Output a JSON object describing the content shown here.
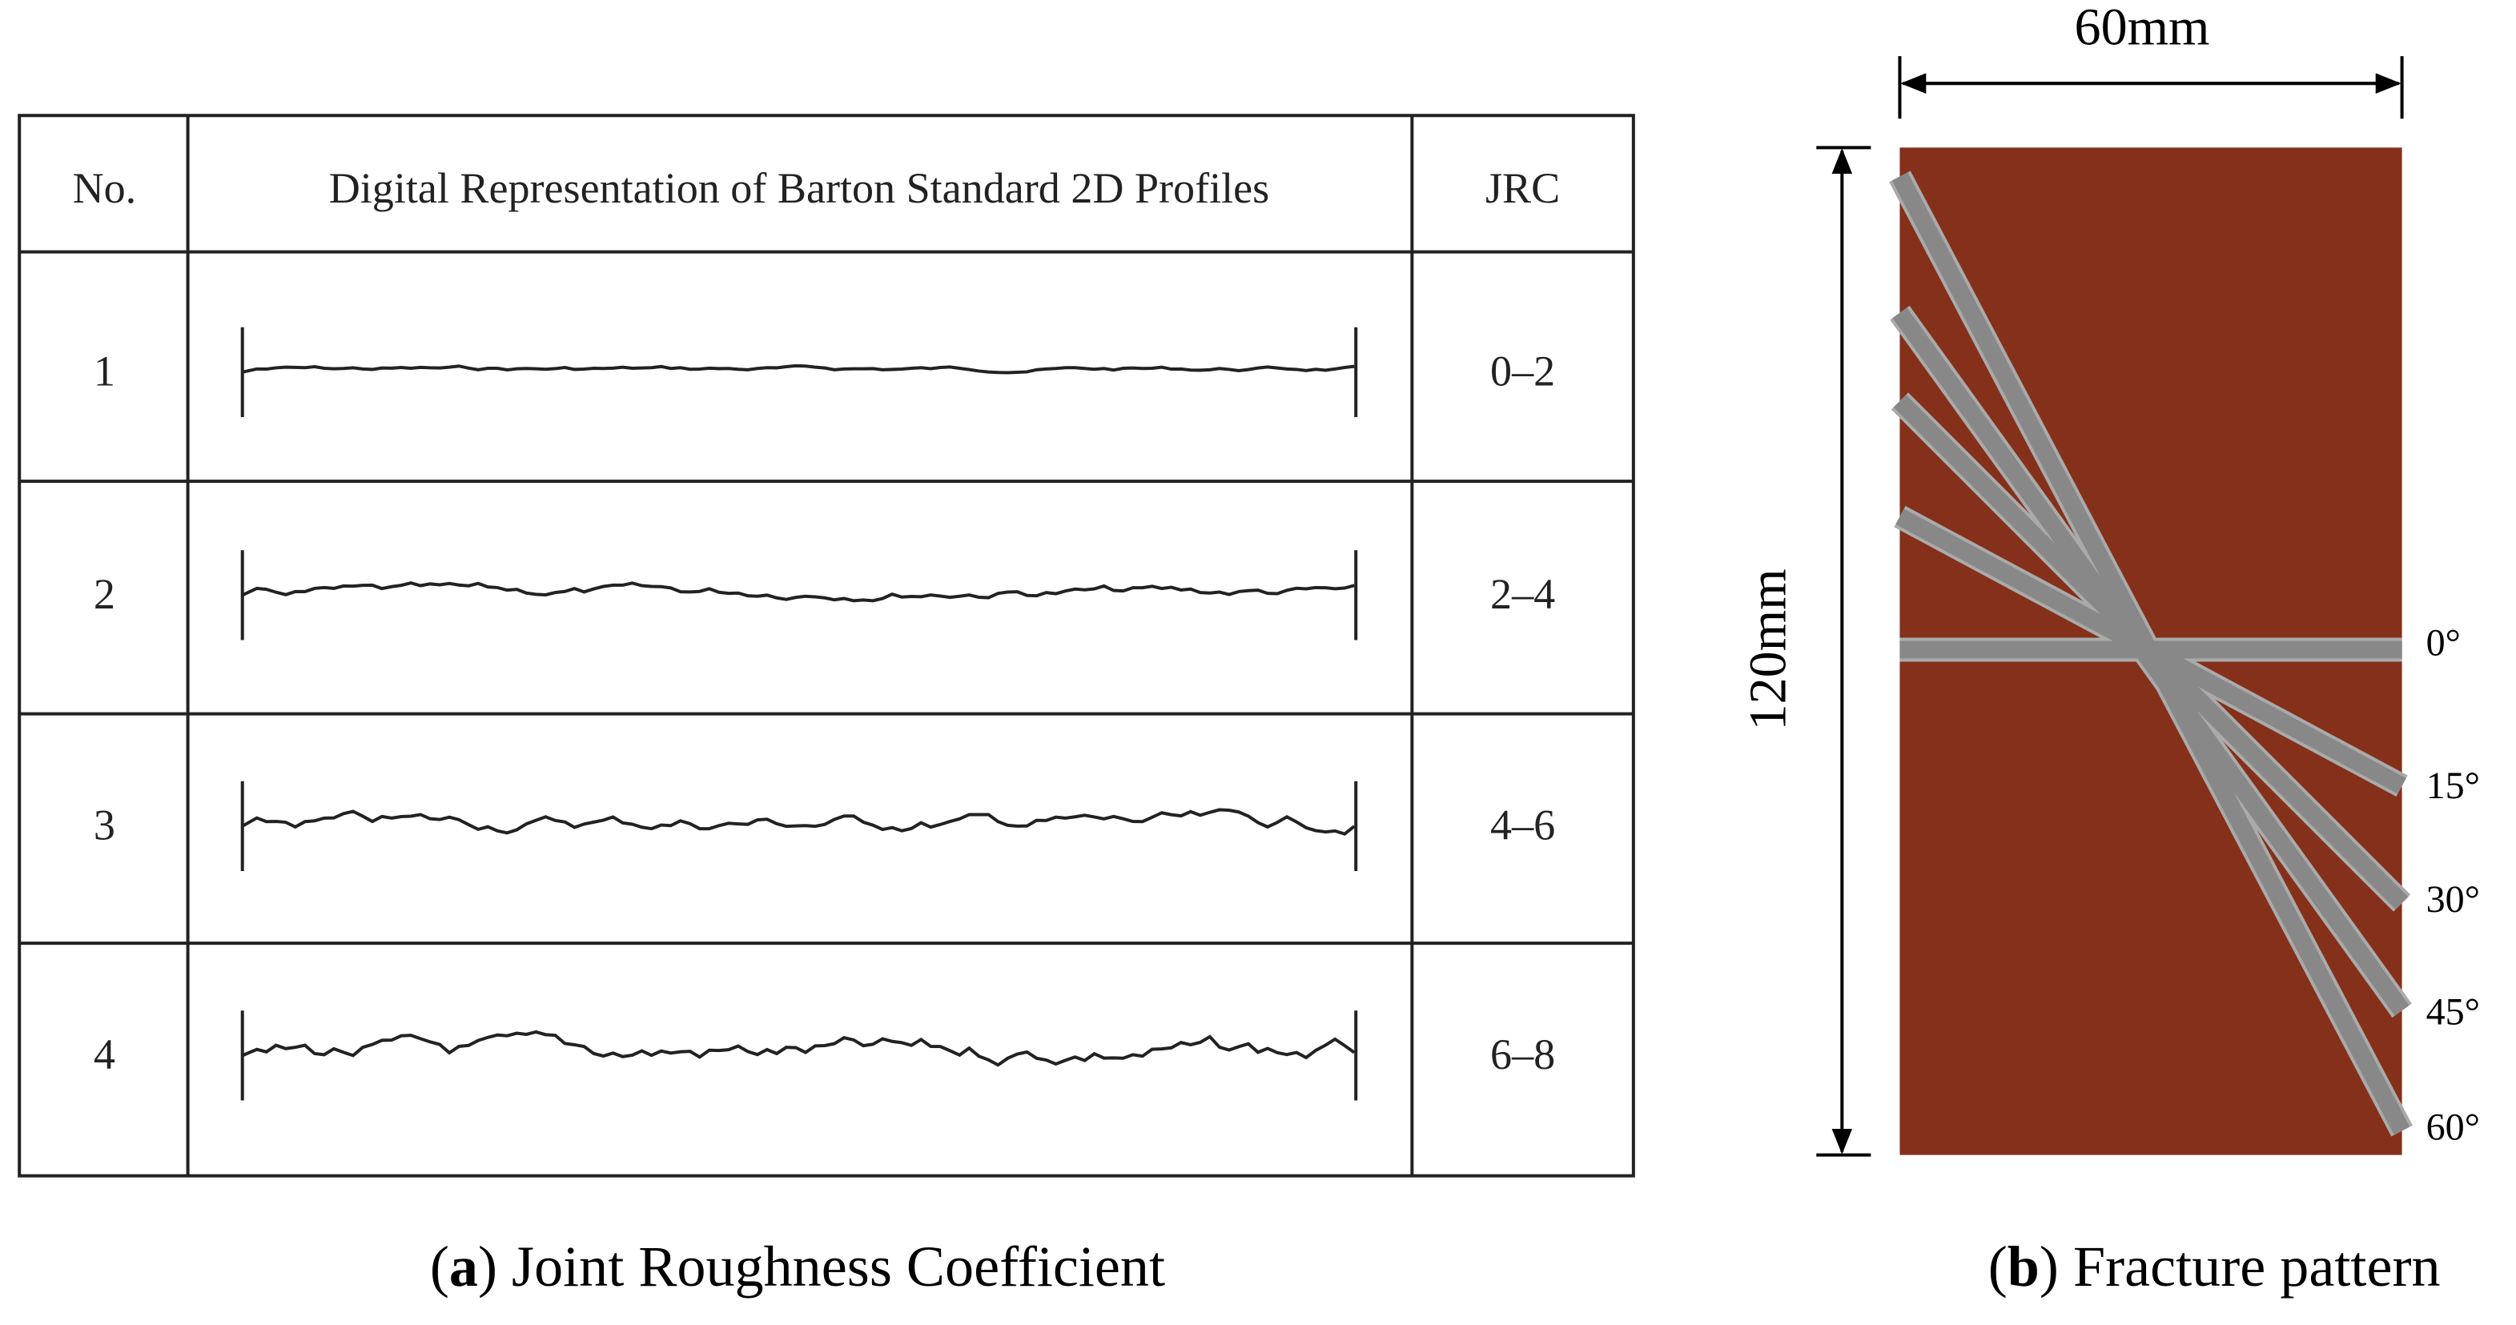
{
  "table": {
    "header": [
      "No.",
      "Digital Representation of Barton Standard 2D Profiles",
      "JRC"
    ],
    "rows": [
      [
        "1",
        "0–2"
      ],
      [
        "2",
        "2–4"
      ],
      [
        "3",
        "4–6"
      ],
      [
        "4",
        "6–8"
      ]
    ]
  },
  "caption_a": {
    "open": "(",
    "label": "a",
    "text": ") Joint Roughness Coefficient"
  },
  "diagram": {
    "width_label": "60mm",
    "height_label": "120mm",
    "angles": [
      "0°",
      "15°",
      "30°",
      "45°",
      "60°"
    ]
  },
  "caption_b": {
    "open": "(",
    "label": "b",
    "text": ") Fracture pattern"
  }
}
